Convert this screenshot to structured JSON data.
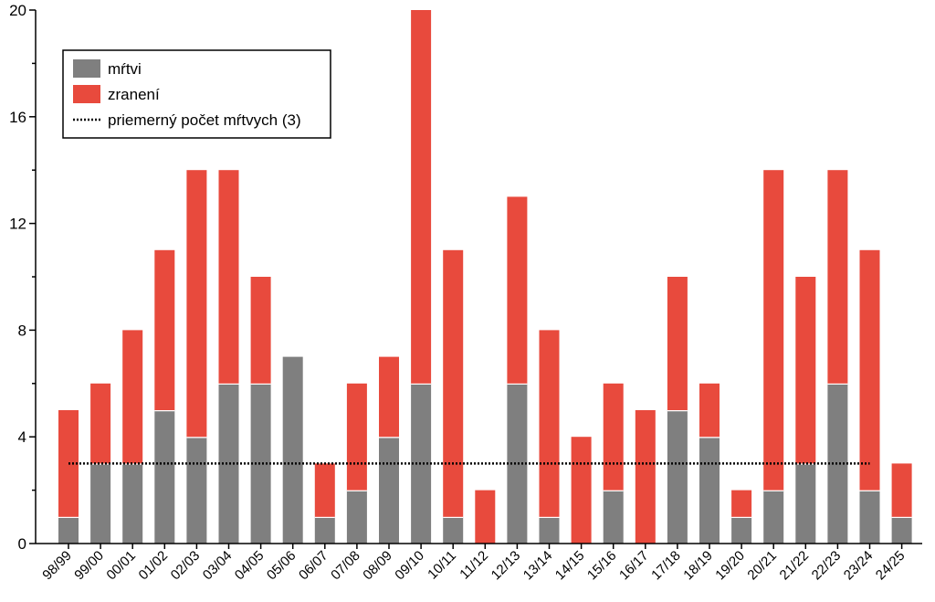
{
  "chart_data": {
    "type": "bar",
    "stacked": true,
    "categories": [
      "98/99",
      "99/00",
      "00/01",
      "01/02",
      "02/03",
      "03/04",
      "04/05",
      "05/06",
      "06/07",
      "07/08",
      "08/09",
      "09/10",
      "10/11",
      "11/12",
      "12/13",
      "13/14",
      "14/15",
      "15/16",
      "16/17",
      "17/18",
      "18/19",
      "19/20",
      "20/21",
      "21/22",
      "22/23",
      "23/24",
      "24/25"
    ],
    "series": [
      {
        "name": "mŕtvi",
        "color": "#7f7f7f",
        "values": [
          1,
          3,
          3,
          5,
          4,
          6,
          6,
          7,
          1,
          2,
          4,
          6,
          1,
          0,
          6,
          1,
          0,
          2,
          0,
          5,
          4,
          1,
          2,
          3,
          6,
          2,
          1
        ]
      },
      {
        "name": "zranení",
        "color": "#e84a3d",
        "values": [
          4,
          3,
          5,
          6,
          10,
          8,
          4,
          0,
          2,
          4,
          3,
          14,
          10,
          2,
          7,
          7,
          4,
          4,
          5,
          5,
          2,
          1,
          12,
          7,
          8,
          9,
          2
        ]
      }
    ],
    "reference_line": {
      "name": "priemerný počet mŕtvych (3)",
      "value": 3,
      "style": "dotted",
      "color": "#000000"
    },
    "ylim": [
      0,
      20
    ],
    "yticks": [
      0,
      4,
      8,
      12,
      16,
      20
    ],
    "legend_position": "top-left",
    "grid": false,
    "title": "",
    "xlabel": "",
    "ylabel": ""
  }
}
